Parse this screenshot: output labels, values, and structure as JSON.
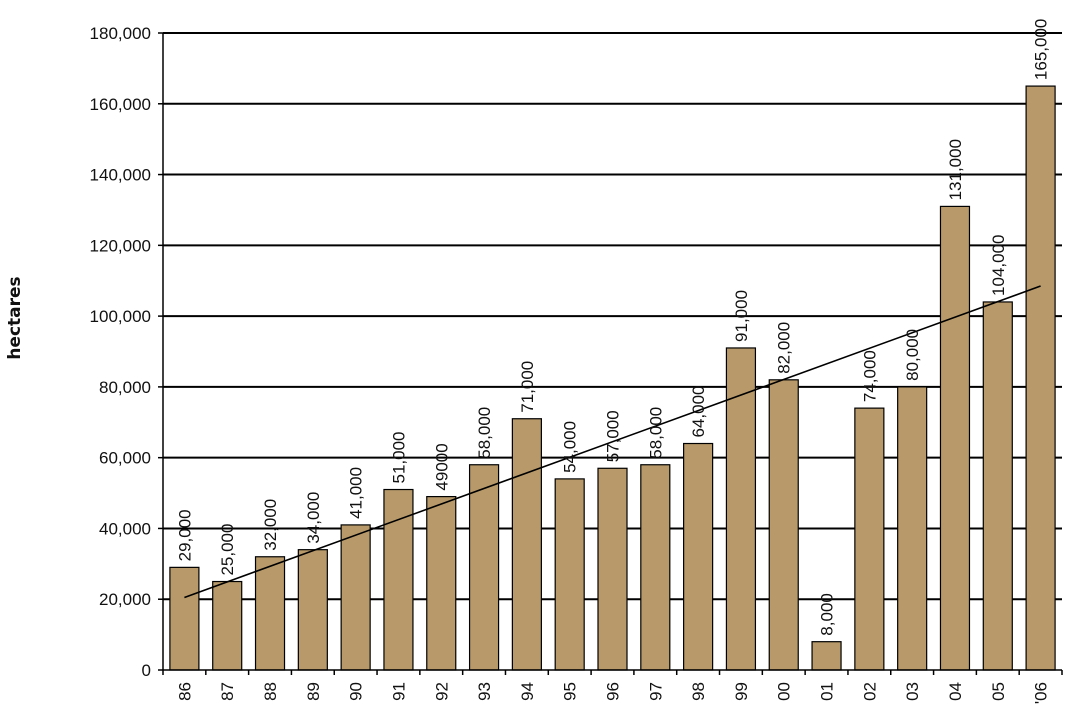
{
  "chart_data": {
    "type": "bar",
    "title": "",
    "xlabel": "",
    "ylabel": "hectares",
    "categories": [
      "86",
      "87",
      "88",
      "89",
      "90",
      "91",
      "92",
      "93",
      "94",
      "95",
      "96",
      "97",
      "98",
      "99",
      "00",
      "01",
      "02",
      "03",
      "04",
      "05",
      "'06"
    ],
    "values": [
      29000,
      25000,
      32000,
      34000,
      41000,
      51000,
      49000,
      58000,
      71000,
      54000,
      57000,
      58000,
      64000,
      91000,
      82000,
      8000,
      74000,
      80000,
      131000,
      104000,
      165000
    ],
    "data_labels": [
      "29,000",
      "25,000",
      "32,000",
      "34,000",
      "41,000",
      "51,000",
      "49000",
      "58,000",
      "71,000",
      "54,000",
      "57,000",
      "58,000",
      "64,000",
      "91,000",
      "82,000",
      "8,000",
      "74,000",
      "80,000",
      "131,000",
      "104,000",
      "165,000"
    ],
    "yticks": [
      0,
      20000,
      40000,
      60000,
      80000,
      100000,
      120000,
      140000,
      160000,
      180000
    ],
    "ytick_labels": [
      "0",
      "20,000",
      "40,000",
      "60,000",
      "80,000",
      "100,000",
      "120,000",
      "140,000",
      "160,000",
      "180,000"
    ],
    "ylim": [
      0,
      180000
    ],
    "grid": true,
    "legend": "none",
    "trendline": {
      "type": "linear",
      "start": 20500,
      "end": 108500
    },
    "colors": {
      "bar": "#b89a6a",
      "grid": "#000000",
      "trend": "#000000"
    }
  }
}
